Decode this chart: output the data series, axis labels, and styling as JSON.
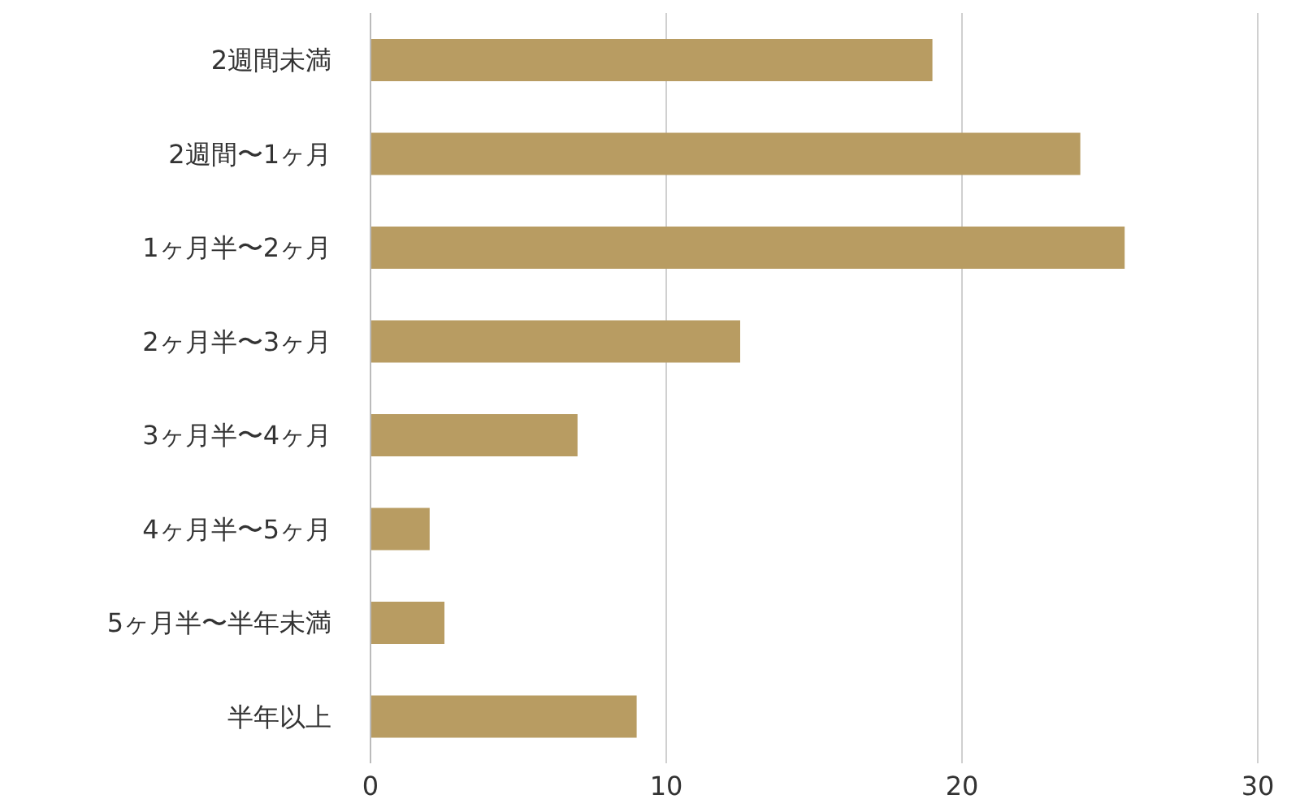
{
  "chart_data": {
    "type": "bar",
    "orientation": "horizontal",
    "categories": [
      "2週間未満",
      "2週間〜1ヶ月",
      "1ヶ月半〜2ヶ月",
      "2ヶ月半〜3ヶ月",
      "3ヶ月半〜4ヶ月",
      "4ヶ月半〜5ヶ月",
      "5ヶ月半〜半年未満",
      "半年以上"
    ],
    "values": [
      19,
      24,
      25.5,
      12.5,
      7,
      2,
      2.5,
      9
    ],
    "color": "#b89c62",
    "xlim": [
      0,
      30
    ],
    "xticks": [
      0,
      10,
      20,
      30
    ],
    "grid": "x",
    "legend": false
  }
}
